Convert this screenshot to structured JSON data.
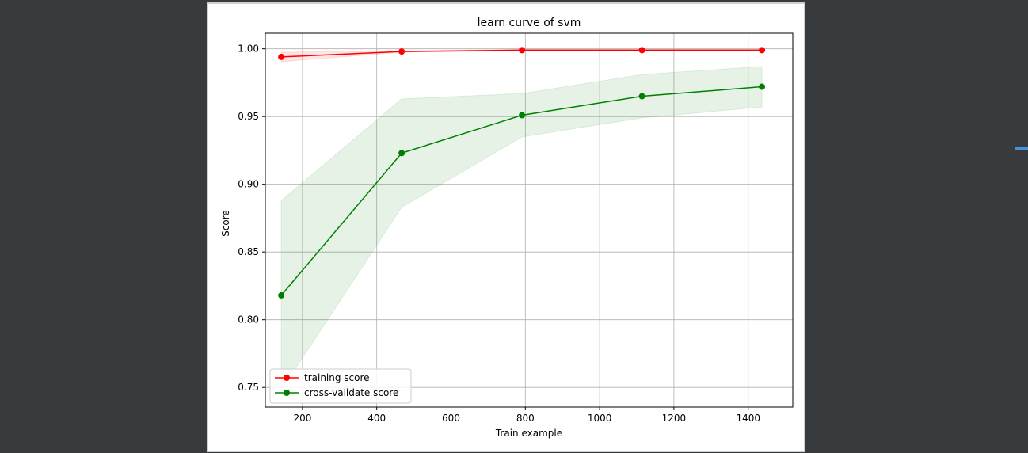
{
  "chart_data": {
    "type": "line",
    "title": "learn curve of svm",
    "xlabel": "Train example",
    "ylabel": "Score",
    "xlim": [
      100,
      1520
    ],
    "ylim": [
      0.7355,
      1.0115
    ],
    "xticks": [
      200,
      400,
      600,
      800,
      1000,
      1200,
      1400
    ],
    "yticks": [
      0.75,
      0.8,
      0.85,
      0.9,
      0.95,
      1.0
    ],
    "xtick_labels": [
      "200",
      "400",
      "600",
      "800",
      "1000",
      "1200",
      "1400"
    ],
    "ytick_labels": [
      "0.75",
      "0.80",
      "0.85",
      "0.90",
      "0.95",
      "1.00"
    ],
    "grid": true,
    "legend_position": "lower-left",
    "x": [
      143,
      467,
      791,
      1114,
      1437
    ],
    "series": [
      {
        "name": "training score",
        "color": "#ff0000",
        "values": [
          0.994,
          0.998,
          0.999,
          0.999,
          0.999
        ],
        "lower": [
          0.9905,
          0.9975,
          0.9985,
          0.9985,
          0.9985
        ],
        "upper": [
          0.9975,
          0.9985,
          0.9995,
          0.9995,
          0.9995
        ]
      },
      {
        "name": "cross-validate score",
        "color": "#008000",
        "values": [
          0.818,
          0.923,
          0.951,
          0.965,
          0.972
        ],
        "lower": [
          0.748,
          0.883,
          0.935,
          0.949,
          0.957
        ],
        "upper": [
          0.888,
          0.963,
          0.967,
          0.981,
          0.987
        ]
      }
    ]
  },
  "colors": {
    "page_background": "#383b3e",
    "figure_background": "#ffffff",
    "grid": "#b0b0b0",
    "side_marker": "#4a90d9"
  }
}
